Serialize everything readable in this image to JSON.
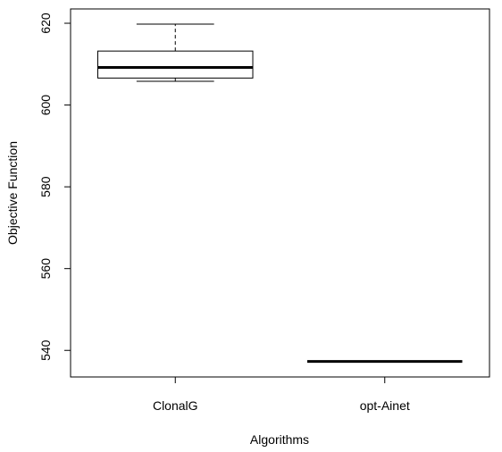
{
  "chart_data": {
    "type": "boxplot",
    "title": "",
    "xlabel": "Algorithms",
    "ylabel": "Objective Function",
    "ylim": [
      533.5,
      623.5
    ],
    "yticks": [
      540,
      560,
      580,
      600,
      620
    ],
    "ytick_labels": [
      "540",
      "560",
      "580",
      "600",
      "620"
    ],
    "categories": [
      "ClonalG",
      "opt-Ainet"
    ],
    "boxes": [
      {
        "name": "ClonalG",
        "min": 605.8,
        "q1": 606.6,
        "median": 609.2,
        "q3": 613.2,
        "max": 619.8
      },
      {
        "name": "opt-Ainet",
        "min": 537.3,
        "q1": 537.3,
        "median": 537.3,
        "q3": 537.3,
        "max": 537.3
      }
    ],
    "grid": false,
    "legend": "none"
  }
}
